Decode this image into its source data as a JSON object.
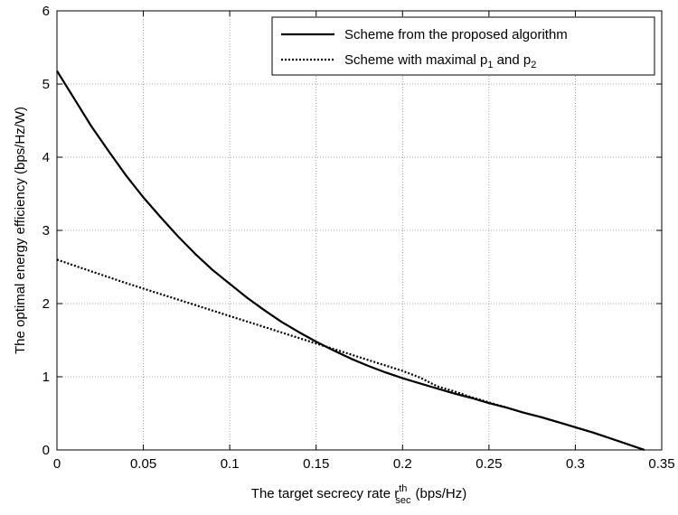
{
  "chart_data": {
    "type": "line",
    "xlabel": {
      "text": "The target secrecy rate r",
      "superscript": "th",
      "subscript": "sec",
      "unit": "(bps/Hz)"
    },
    "ylabel": "The optimal energy efficiency (bps/Hz/W)",
    "xlim": [
      0,
      0.35
    ],
    "ylim": [
      0,
      6
    ],
    "xticks": [
      0,
      0.05,
      0.1,
      0.15,
      0.2,
      0.25,
      0.3,
      0.35
    ],
    "xtick_labels": [
      "0",
      "0.05",
      "0.1",
      "0.15",
      "0.2",
      "0.25",
      "0.3",
      "0.35"
    ],
    "yticks": [
      0,
      1,
      2,
      3,
      4,
      5,
      6
    ],
    "ytick_labels": [
      "0",
      "1",
      "2",
      "3",
      "4",
      "5",
      "6"
    ],
    "grid": true,
    "legend_position": "top-right",
    "series": [
      {
        "name": "Scheme from the proposed algorithm",
        "style": "solid",
        "color": "#000000",
        "x": [
          0,
          0.01,
          0.02,
          0.03,
          0.04,
          0.05,
          0.06,
          0.07,
          0.08,
          0.09,
          0.1,
          0.11,
          0.12,
          0.13,
          0.14,
          0.15,
          0.16,
          0.17,
          0.18,
          0.19,
          0.2,
          0.21,
          0.22,
          0.23,
          0.24,
          0.25,
          0.26,
          0.27,
          0.28,
          0.29,
          0.3,
          0.31,
          0.32,
          0.33,
          0.34
        ],
        "y": [
          5.18,
          4.8,
          4.42,
          4.08,
          3.75,
          3.45,
          3.18,
          2.92,
          2.68,
          2.46,
          2.27,
          2.08,
          1.91,
          1.75,
          1.61,
          1.48,
          1.36,
          1.25,
          1.15,
          1.06,
          0.98,
          0.91,
          0.84,
          0.77,
          0.71,
          0.64,
          0.58,
          0.51,
          0.45,
          0.38,
          0.31,
          0.24,
          0.16,
          0.08,
          0.0
        ]
      },
      {
        "name_parts": [
          "Scheme with maximal p",
          "1",
          " and p",
          "2"
        ],
        "style": "dotted",
        "color": "#000000",
        "x": [
          0,
          0.02,
          0.04,
          0.06,
          0.08,
          0.1,
          0.12,
          0.14,
          0.16,
          0.18,
          0.2,
          0.21,
          0.22,
          0.23,
          0.24,
          0.25,
          0.26,
          0.27,
          0.28,
          0.29,
          0.3,
          0.31,
          0.32,
          0.33,
          0.34
        ],
        "y": [
          2.6,
          2.44,
          2.28,
          2.13,
          1.98,
          1.83,
          1.68,
          1.53,
          1.38,
          1.23,
          1.08,
          0.99,
          0.87,
          0.8,
          0.72,
          0.65,
          0.58,
          0.51,
          0.45,
          0.38,
          0.31,
          0.24,
          0.16,
          0.08,
          0.0
        ]
      }
    ]
  }
}
